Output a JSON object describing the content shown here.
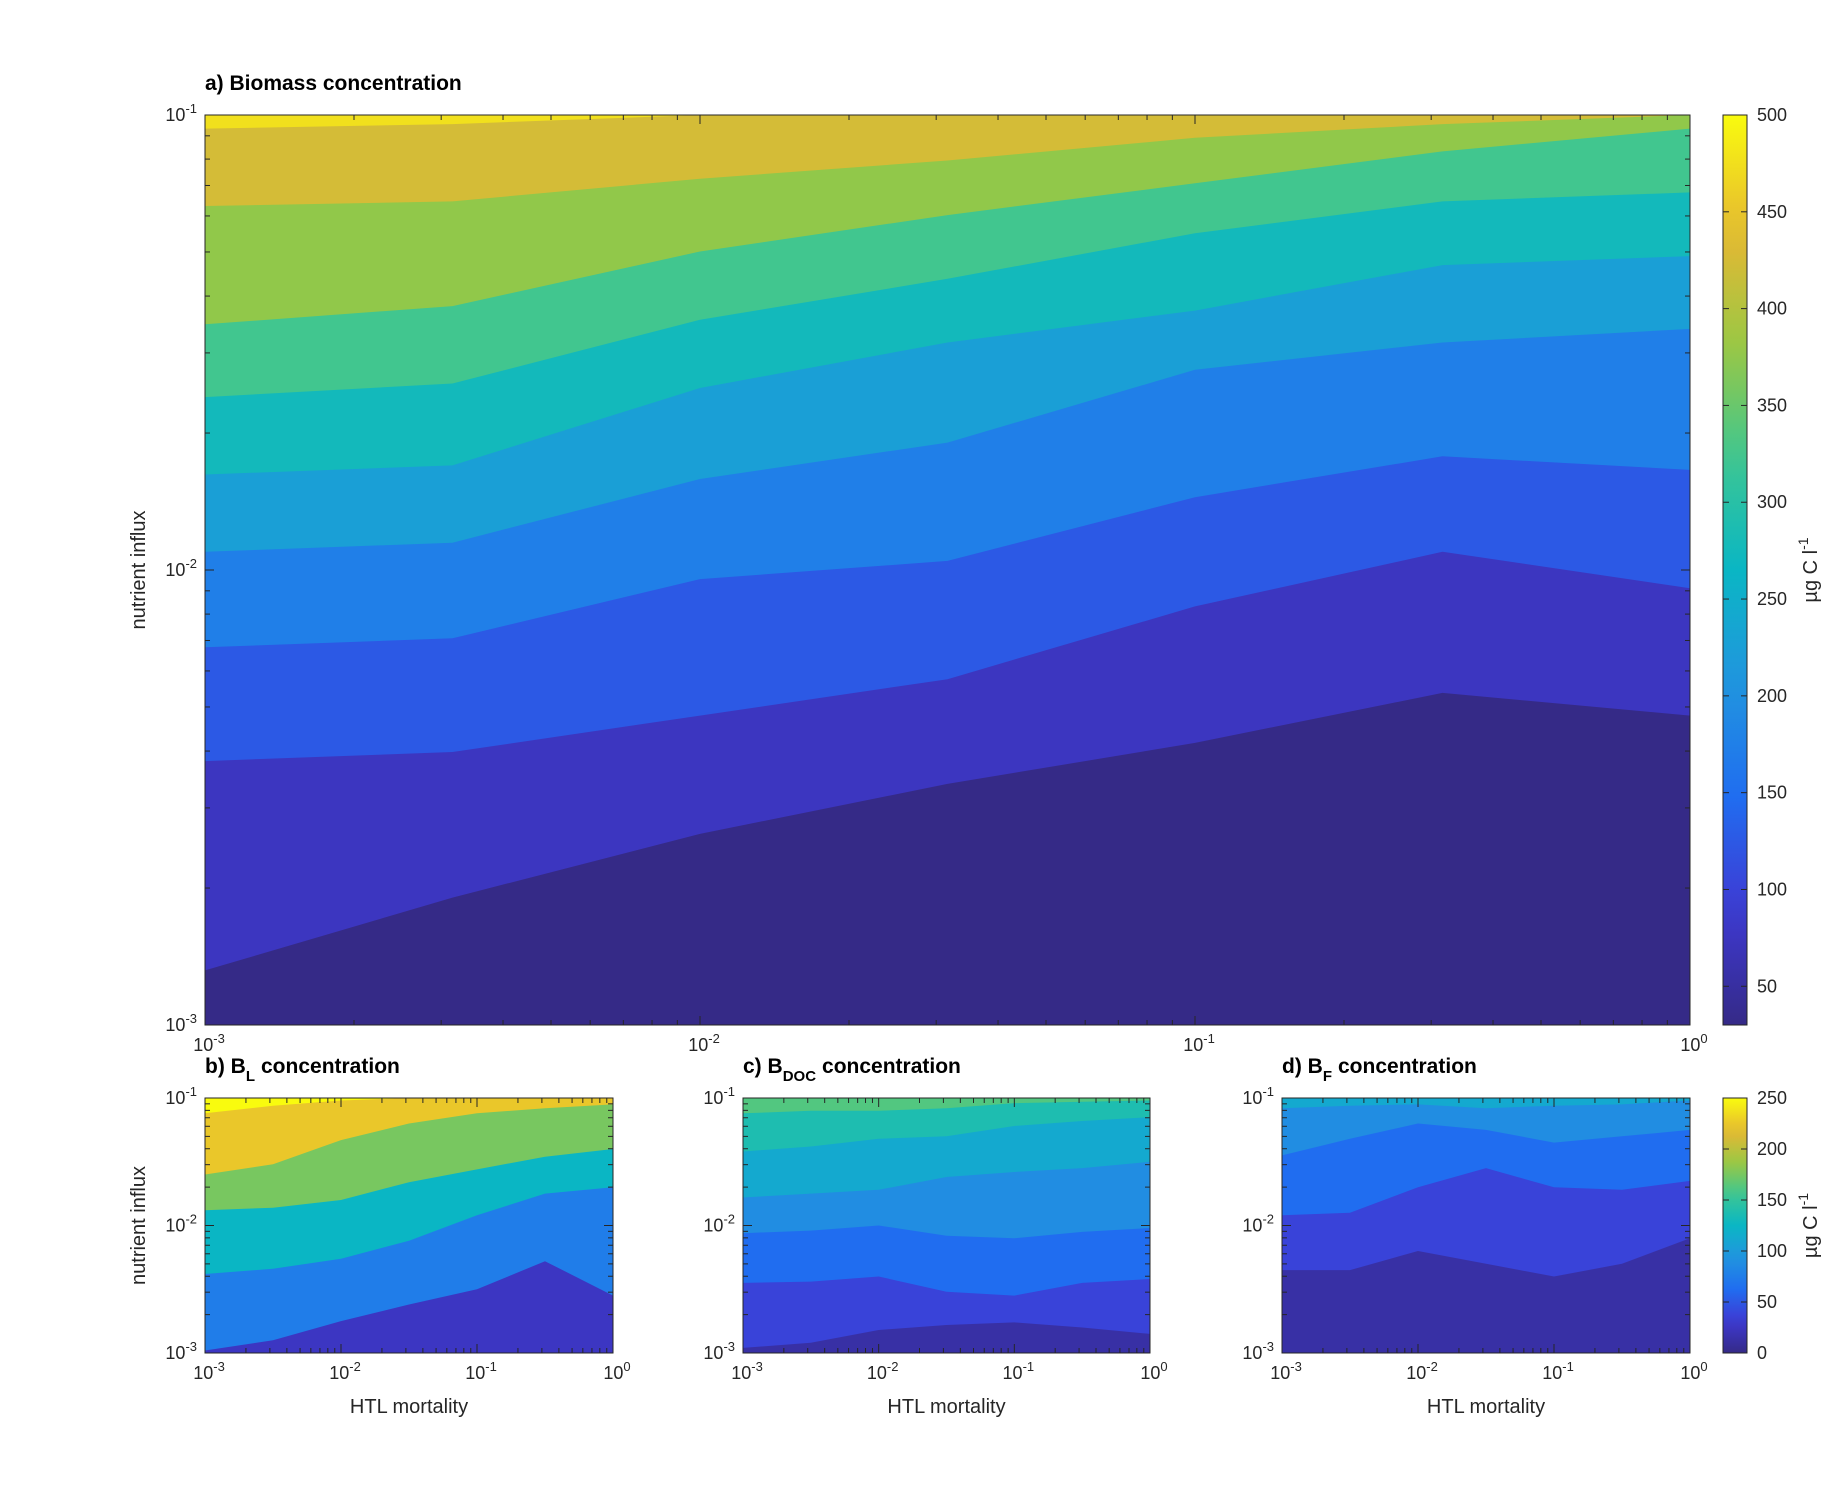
{
  "chart_data": [
    {
      "id": "a",
      "type": "heatmap",
      "title": "a) Biomass concentration",
      "xlabel": "",
      "ylabel": "nutrient influx",
      "xscale": "log",
      "yscale": "log",
      "xlim": [
        0.001,
        1
      ],
      "ylim": [
        0.001,
        0.1
      ],
      "x_tick_labels": [
        {
          "b": "10",
          "e": "-3"
        },
        {
          "b": "10",
          "e": "-2"
        },
        {
          "b": "10",
          "e": "-1"
        },
        {
          "b": "10",
          "e": "0"
        }
      ],
      "y_tick_labels": [
        {
          "b": "10",
          "e": "-3"
        },
        {
          "b": "10",
          "e": "-2"
        },
        {
          "b": "10",
          "e": "-1"
        }
      ],
      "colorbar": {
        "label": "µg C l",
        "label_exp": "-1",
        "min": 30,
        "max": 500,
        "ticks": [
          50,
          100,
          150,
          200,
          250,
          300,
          350,
          400,
          450,
          500
        ]
      },
      "contour_levels": [
        50,
        100,
        150,
        200,
        250,
        300,
        350,
        400,
        450,
        500
      ],
      "x_samples_log10": [
        -3,
        -2.5,
        -2,
        -1.5,
        -1,
        -0.5,
        0
      ],
      "bands": [
        {
          "level": 50,
          "boundary_log10_y": [
            -2.88,
            -2.72,
            -2.58,
            -2.47,
            -2.38,
            -2.27,
            -2.32
          ]
        },
        {
          "level": 100,
          "boundary_log10_y": [
            -2.42,
            -2.4,
            -2.32,
            -2.24,
            -2.08,
            -1.96,
            -2.04
          ]
        },
        {
          "level": 150,
          "boundary_log10_y": [
            -2.17,
            -2.15,
            -2.02,
            -1.98,
            -1.84,
            -1.75,
            -1.78
          ]
        },
        {
          "level": 200,
          "boundary_log10_y": [
            -1.96,
            -1.94,
            -1.8,
            -1.72,
            -1.56,
            -1.5,
            -1.47
          ]
        },
        {
          "level": 250,
          "boundary_log10_y": [
            -1.79,
            -1.77,
            -1.6,
            -1.5,
            -1.43,
            -1.33,
            -1.31
          ]
        },
        {
          "level": 300,
          "boundary_log10_y": [
            -1.62,
            -1.59,
            -1.45,
            -1.36,
            -1.26,
            -1.19,
            -1.17
          ]
        },
        {
          "level": 350,
          "boundary_log10_y": [
            -1.46,
            -1.42,
            -1.3,
            -1.22,
            -1.15,
            -1.08,
            -1.03
          ]
        },
        {
          "level": 400,
          "boundary_log10_y": [
            -1.2,
            -1.19,
            -1.14,
            -1.1,
            -1.05,
            -1.02,
            -1.0
          ]
        },
        {
          "level": 450,
          "boundary_log10_y": [
            -1.03,
            -1.02,
            -1.0,
            -1.0,
            -1.0,
            -1.0,
            -1.0
          ]
        }
      ]
    },
    {
      "id": "b",
      "type": "heatmap",
      "title_prefix": "b) B",
      "title_sub": "L",
      "title_suffix": "concentration",
      "xlabel": "HTL mortality",
      "ylabel": "nutrient influx",
      "xscale": "log",
      "yscale": "log",
      "xlim": [
        0.001,
        1
      ],
      "ylim": [
        0.001,
        0.1
      ],
      "x_tick_labels": [
        {
          "b": "10",
          "e": "-3"
        },
        {
          "b": "10",
          "e": "-2"
        },
        {
          "b": "10",
          "e": "-1"
        },
        {
          "b": "10",
          "e": "0"
        }
      ],
      "y_tick_labels": [
        {
          "b": "10",
          "e": "-3"
        },
        {
          "b": "10",
          "e": "-2"
        },
        {
          "b": "10",
          "e": "-1"
        }
      ],
      "colorbar": "shared-bottom",
      "contour_levels": [
        50,
        100,
        150,
        200,
        250
      ],
      "x_samples_log10": [
        -3,
        -2.5,
        -2,
        -1.5,
        -1,
        -0.5,
        0
      ],
      "bands": [
        {
          "level": 50,
          "boundary_log10_y": [
            -2.98,
            -2.9,
            -2.75,
            -2.62,
            -2.5,
            -2.28,
            -2.55
          ]
        },
        {
          "level": 100,
          "boundary_log10_y": [
            -2.38,
            -2.34,
            -2.26,
            -2.12,
            -1.92,
            -1.75,
            -1.7
          ]
        },
        {
          "level": 150,
          "boundary_log10_y": [
            -1.88,
            -1.86,
            -1.8,
            -1.66,
            -1.56,
            -1.46,
            -1.4
          ]
        },
        {
          "level": 200,
          "boundary_log10_y": [
            -1.6,
            -1.52,
            -1.33,
            -1.2,
            -1.12,
            -1.08,
            -1.05
          ]
        },
        {
          "level": 250,
          "boundary_log10_y": [
            -1.12,
            -1.06,
            -1.02,
            -1.0,
            -1.0,
            -1.0,
            -1.0
          ]
        }
      ]
    },
    {
      "id": "c",
      "type": "heatmap",
      "title_prefix": "c) B",
      "title_sub": "DOC",
      "title_suffix": "concentration",
      "xlabel": "HTL mortality",
      "ylabel": "",
      "xscale": "log",
      "yscale": "log",
      "xlim": [
        0.001,
        1
      ],
      "ylim": [
        0.001,
        0.1
      ],
      "x_tick_labels": [
        {
          "b": "10",
          "e": "-3"
        },
        {
          "b": "10",
          "e": "-2"
        },
        {
          "b": "10",
          "e": "-1"
        },
        {
          "b": "10",
          "e": "0"
        }
      ],
      "y_tick_labels": [
        {
          "b": "10",
          "e": "-3"
        },
        {
          "b": "10",
          "e": "-2"
        },
        {
          "b": "10",
          "e": "-1"
        }
      ],
      "colorbar": "shared-bottom",
      "contour_levels": [
        25,
        50,
        75,
        100,
        125,
        150
      ],
      "x_samples_log10": [
        -3,
        -2.5,
        -2,
        -1.5,
        -1,
        -0.5,
        0
      ],
      "bands": [
        {
          "level": 25,
          "boundary_log10_y": [
            -2.96,
            -2.92,
            -2.82,
            -2.78,
            -2.76,
            -2.8,
            -2.85
          ]
        },
        {
          "level": 50,
          "boundary_log10_y": [
            -2.45,
            -2.44,
            -2.4,
            -2.52,
            -2.55,
            -2.45,
            -2.42
          ]
        },
        {
          "level": 75,
          "boundary_log10_y": [
            -2.06,
            -2.04,
            -2.0,
            -2.08,
            -2.1,
            -2.05,
            -2.02
          ]
        },
        {
          "level": 100,
          "boundary_log10_y": [
            -1.78,
            -1.75,
            -1.72,
            -1.62,
            -1.58,
            -1.55,
            -1.5
          ]
        },
        {
          "level": 125,
          "boundary_log10_y": [
            -1.42,
            -1.38,
            -1.32,
            -1.3,
            -1.22,
            -1.18,
            -1.15
          ]
        },
        {
          "level": 150,
          "boundary_log10_y": [
            -1.12,
            -1.1,
            -1.1,
            -1.08,
            -1.04,
            -1.03,
            -1.02
          ]
        }
      ]
    },
    {
      "id": "d",
      "type": "heatmap",
      "title_prefix": "d) B",
      "title_sub": "F",
      "title_suffix": "concentration",
      "xlabel": "HTL mortality",
      "ylabel": "",
      "xscale": "log",
      "yscale": "log",
      "xlim": [
        0.001,
        1
      ],
      "ylim": [
        0.001,
        0.1
      ],
      "x_tick_labels": [
        {
          "b": "10",
          "e": "-3"
        },
        {
          "b": "10",
          "e": "-2"
        },
        {
          "b": "10",
          "e": "-1"
        },
        {
          "b": "10",
          "e": "0"
        }
      ],
      "y_tick_labels": [
        {
          "b": "10",
          "e": "-3"
        },
        {
          "b": "10",
          "e": "-2"
        },
        {
          "b": "10",
          "e": "-1"
        }
      ],
      "colorbar": {
        "label": "µg C l",
        "label_exp": "-1",
        "min": 0,
        "max": 250,
        "ticks": [
          0,
          50,
          100,
          150,
          200,
          250
        ]
      },
      "contour_levels": [
        25,
        50,
        75,
        100
      ],
      "x_samples_log10": [
        -3,
        -2.5,
        -2,
        -1.5,
        -1,
        -0.5,
        0
      ],
      "bands": [
        {
          "level": 25,
          "boundary_log10_y": [
            -2.35,
            -2.35,
            -2.2,
            -2.3,
            -2.4,
            -2.3,
            -2.1
          ]
        },
        {
          "level": 50,
          "boundary_log10_y": [
            -1.92,
            -1.9,
            -1.7,
            -1.55,
            -1.7,
            -1.72,
            -1.65
          ]
        },
        {
          "level": 75,
          "boundary_log10_y": [
            -1.45,
            -1.32,
            -1.2,
            -1.25,
            -1.35,
            -1.3,
            -1.25
          ]
        },
        {
          "level": 100,
          "boundary_log10_y": [
            -1.08,
            -1.06,
            -1.05,
            -1.08,
            -1.06,
            -1.05,
            -1.02
          ]
        }
      ]
    }
  ]
}
